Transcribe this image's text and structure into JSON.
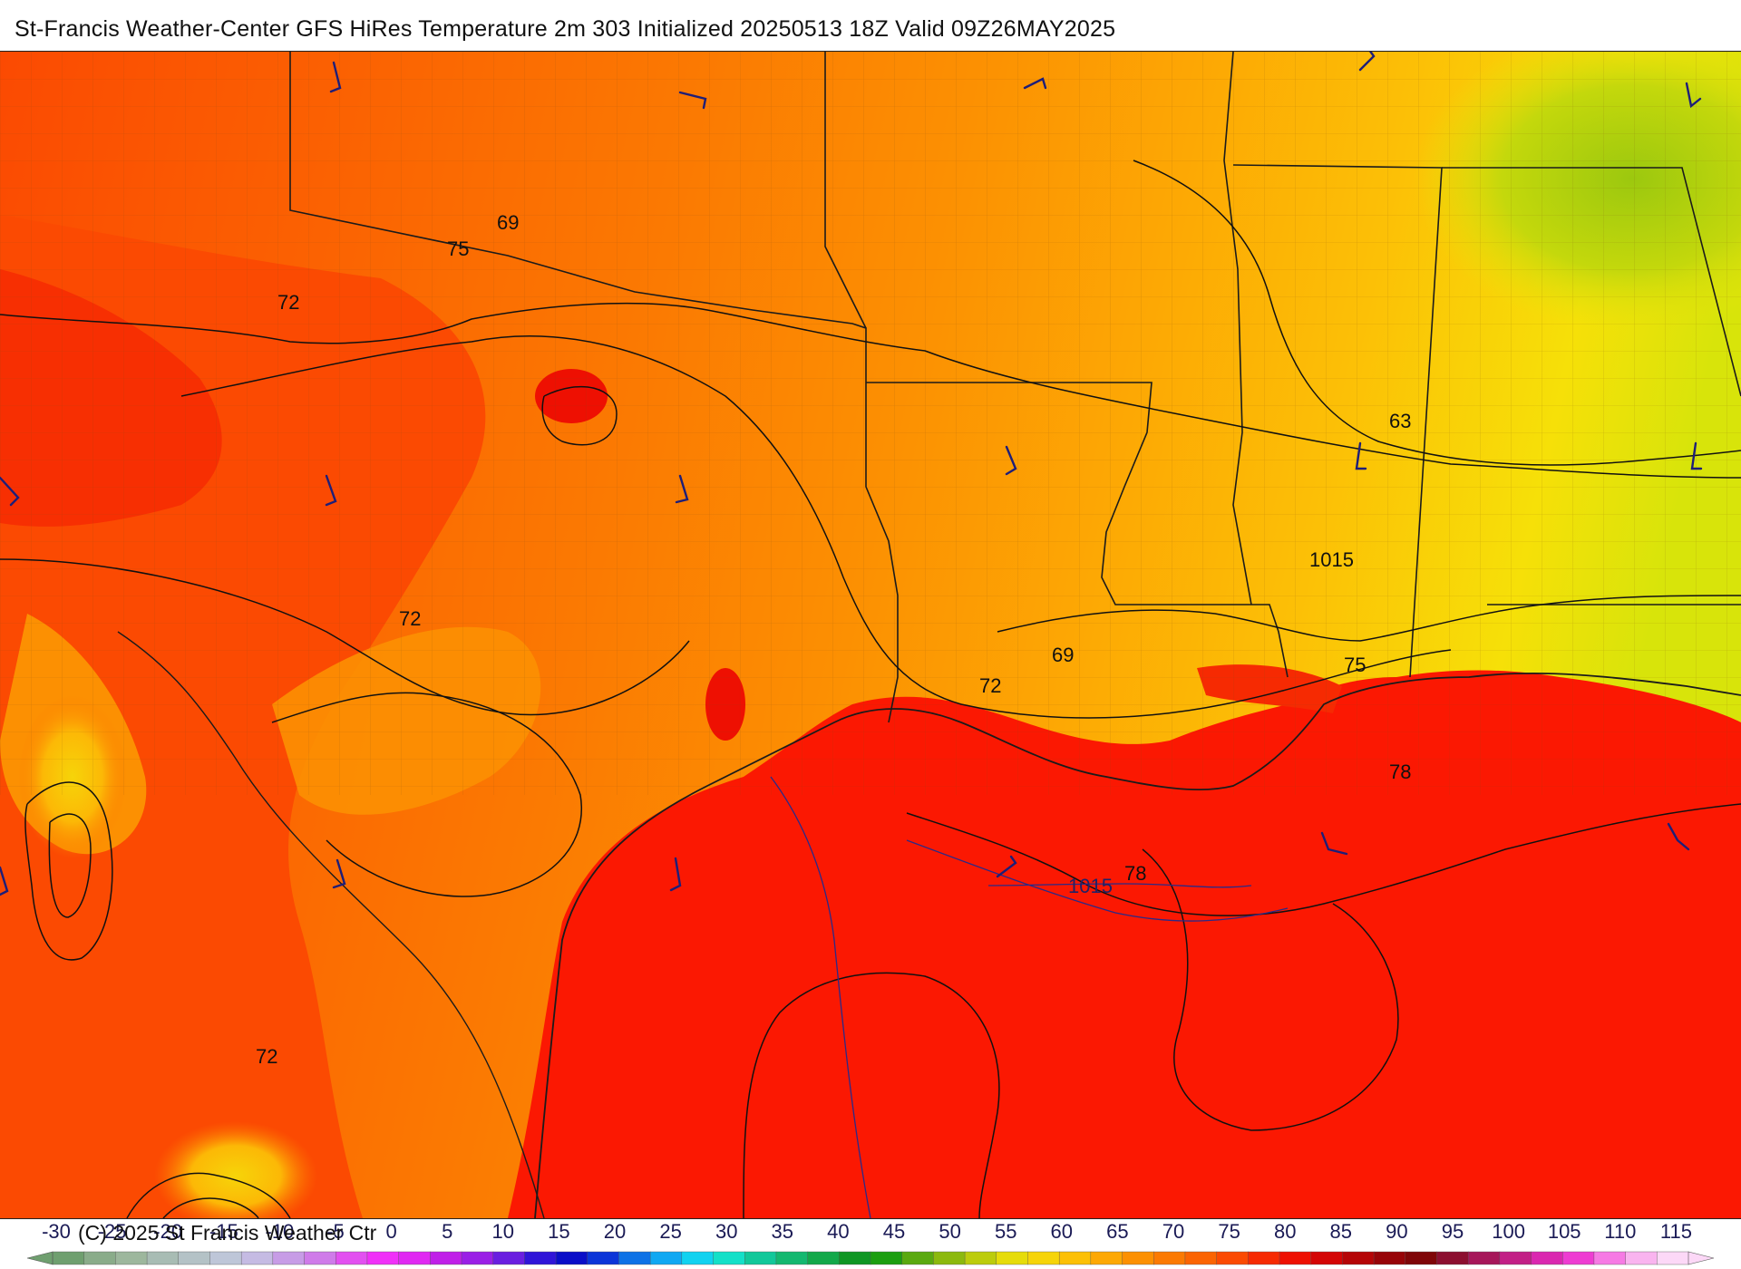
{
  "title": "St-Francis Weather-Center GFS HiRes Temperature 2m  303 Initialized 20250513 18Z Valid 09Z26MAY2025",
  "copyright": "(C) 2025 St Francis Weather Ctr",
  "map": {
    "variable": "Temperature 2m",
    "units": "°F",
    "overlays": [
      "temperature-contours",
      "isobars",
      "wind-barbs",
      "state-borders",
      "county-borders"
    ],
    "temperature_contour_labels": [
      "69",
      "75",
      "72",
      "72",
      "72",
      "63",
      "69",
      "72",
      "75",
      "78",
      "78"
    ],
    "isobar_labels": [
      "1015",
      "1015"
    ]
  },
  "color_scale": {
    "ticks": [
      "-30",
      "-25",
      "-20",
      "-15",
      "-10",
      "-5",
      "0",
      "5",
      "10",
      "15",
      "20",
      "25",
      "30",
      "35",
      "40",
      "45",
      "50",
      "55",
      "60",
      "65",
      "70",
      "75",
      "80",
      "85",
      "90",
      "95",
      "100",
      "105",
      "110",
      "115"
    ],
    "colors": [
      "#6f9f6f",
      "#8aac8a",
      "#9db79d",
      "#a8bcb4",
      "#b4c2c6",
      "#bec6d8",
      "#c5bbe3",
      "#c79ce6",
      "#cf7be9",
      "#e250f0",
      "#f030f8",
      "#e028f2",
      "#c020e8",
      "#9a20e6",
      "#6a1fe0",
      "#3015d8",
      "#0a0ec8",
      "#0b35d8",
      "#0d72e6",
      "#10a8f2",
      "#12d2f0",
      "#14e0c8",
      "#12c89a",
      "#14b870",
      "#13a84a",
      "#0f9624",
      "#1c9e10",
      "#5aa910",
      "#8cb90e",
      "#bccc0c",
      "#e6dc0a",
      "#f6d409",
      "#fcc006",
      "#fda804",
      "#fc9002",
      "#fb7a02",
      "#fb6402",
      "#fb4a02",
      "#f62a02",
      "#ee1002",
      "#d40606",
      "#b50507",
      "#970408",
      "#7f0608",
      "#8c0f30",
      "#a6175a",
      "#c22086",
      "#da28b0",
      "#ee3cd2",
      "#f67ae4",
      "#f9b4ef",
      "#fcd8f7"
    ]
  }
}
